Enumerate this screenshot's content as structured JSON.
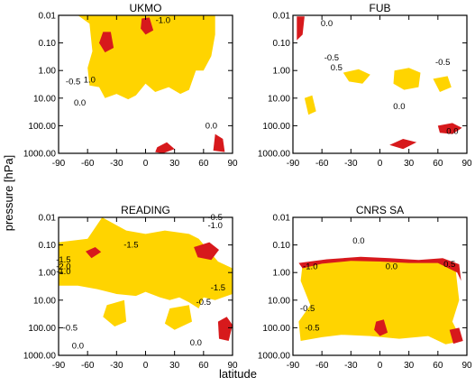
{
  "figure": {
    "xlabel": "latitude",
    "ylabel": "pressure [hPa]"
  },
  "colors": {
    "significant_high": "#ffd400",
    "significant_low": "#d7191c",
    "contour": "#000000"
  },
  "chart_data": [
    {
      "type": "contour",
      "title": "UKMO",
      "x_ticks": [
        "-90",
        "-60",
        "-30",
        "0",
        "30",
        "60",
        "90"
      ],
      "y_ticks": [
        "0.01",
        "0.10",
        "1.00",
        "10.00",
        "100.00",
        "1000.00"
      ],
      "xlim": [
        -90,
        90
      ],
      "ylim": [
        1000,
        0.01
      ],
      "y_scale": "log",
      "contour_labels": [
        {
          "text": "-1.0",
          "lat": 18,
          "p": 0.015
        },
        {
          "text": "-0.5",
          "lat": -75,
          "p": 2.5
        },
        {
          "text": "1.0",
          "lat": -58,
          "p": 2.2
        },
        {
          "text": "0.0",
          "lat": -68,
          "p": 15
        },
        {
          "text": "0.0",
          "lat": 68,
          "p": 100
        }
      ],
      "regions": [
        {
          "shade": "significant_high",
          "pts": [
            [
              -70,
              0.01
            ],
            [
              -58,
              0.02
            ],
            [
              -55,
              0.2
            ],
            [
              -60,
              0.8
            ],
            [
              -58,
              3.5
            ],
            [
              -48,
              4
            ],
            [
              -42,
              10
            ],
            [
              -30,
              7
            ],
            [
              -18,
              11
            ],
            [
              -10,
              8
            ],
            [
              0,
              3
            ],
            [
              10,
              6
            ],
            [
              24,
              4
            ],
            [
              36,
              7
            ],
            [
              45,
              5
            ],
            [
              52,
              1
            ],
            [
              60,
              1
            ],
            [
              68,
              0.3
            ],
            [
              72,
              0.05
            ],
            [
              72,
              0.01
            ]
          ]
        },
        {
          "shade": "significant_low",
          "pts": [
            [
              -44,
              0.04
            ],
            [
              -36,
              0.04
            ],
            [
              -33,
              0.15
            ],
            [
              -42,
              0.22
            ],
            [
              -48,
              0.1
            ]
          ]
        },
        {
          "shade": "significant_low",
          "pts": [
            [
              -4,
              0.013
            ],
            [
              4,
              0.012
            ],
            [
              8,
              0.035
            ],
            [
              0,
              0.05
            ],
            [
              -5,
              0.03
            ]
          ]
        },
        {
          "shade": "significant_low",
          "pts": [
            [
              12,
              600
            ],
            [
              22,
              400
            ],
            [
              30,
              700
            ],
            [
              18,
              1000
            ],
            [
              10,
              900
            ]
          ]
        },
        {
          "shade": "significant_low",
          "pts": [
            [
              72,
              200
            ],
            [
              80,
              300
            ],
            [
              82,
              900
            ],
            [
              70,
              800
            ]
          ]
        }
      ]
    },
    {
      "type": "contour",
      "title": "FUB",
      "x_ticks": [
        "-90",
        "-60",
        "-30",
        "0",
        "30",
        "60",
        "90"
      ],
      "y_ticks": [
        "0.01",
        "0.10",
        "1.00",
        "10.00",
        "100.00",
        "1000.00"
      ],
      "xlim": [
        -90,
        90
      ],
      "ylim": [
        1000,
        0.01
      ],
      "y_scale": "log",
      "contour_labels": [
        {
          "text": "0.0",
          "lat": -55,
          "p": 0.02
        },
        {
          "text": "-0.5",
          "lat": -50,
          "p": 0.35
        },
        {
          "text": "0.5",
          "lat": -45,
          "p": 0.8
        },
        {
          "text": "-0.5",
          "lat": 65,
          "p": 0.5
        },
        {
          "text": "0.0",
          "lat": 20,
          "p": 20
        },
        {
          "text": "0.0",
          "lat": 75,
          "p": 160
        }
      ],
      "regions": [
        {
          "shade": "significant_high",
          "pts": [
            [
              -38,
              1.2
            ],
            [
              -22,
              0.9
            ],
            [
              -10,
              1.4
            ],
            [
              -18,
              3
            ],
            [
              -32,
              2.5
            ]
          ]
        },
        {
          "shade": "significant_high",
          "pts": [
            [
              15,
              1
            ],
            [
              30,
              0.8
            ],
            [
              42,
              1.2
            ],
            [
              40,
              4
            ],
            [
              25,
              5
            ],
            [
              14,
              3
            ]
          ]
        },
        {
          "shade": "significant_high",
          "pts": [
            [
              55,
              2
            ],
            [
              70,
              1.6
            ],
            [
              74,
              4
            ],
            [
              62,
              6
            ]
          ]
        },
        {
          "shade": "significant_high",
          "pts": [
            [
              -78,
              10
            ],
            [
              -70,
              8
            ],
            [
              -66,
              30
            ],
            [
              -74,
              40
            ]
          ]
        },
        {
          "shade": "significant_low",
          "pts": [
            [
              -86,
              0.011
            ],
            [
              -78,
              0.011
            ],
            [
              -80,
              0.05
            ],
            [
              -86,
              0.08
            ]
          ]
        },
        {
          "shade": "significant_low",
          "pts": [
            [
              10,
              500
            ],
            [
              24,
              300
            ],
            [
              38,
              400
            ],
            [
              24,
              700
            ]
          ]
        },
        {
          "shade": "significant_low",
          "pts": [
            [
              60,
              100
            ],
            [
              75,
              80
            ],
            [
              85,
              120
            ],
            [
              75,
              200
            ],
            [
              62,
              180
            ]
          ]
        }
      ]
    },
    {
      "type": "contour",
      "title": "READING",
      "x_ticks": [
        "-90",
        "-60",
        "-30",
        "0",
        "30",
        "60",
        "90"
      ],
      "y_ticks": [
        "0.01",
        "0.10",
        "1.00",
        "10.00",
        "100.00",
        "1000.00"
      ],
      "xlim": [
        -90,
        90
      ],
      "ylim": [
        1000,
        0.01
      ],
      "y_scale": "log",
      "contour_labels": [
        {
          "text": "-1.5",
          "lat": -15,
          "p": 0.1
        },
        {
          "text": "-0.5",
          "lat": 72,
          "p": 0.01
        },
        {
          "text": "-1.0",
          "lat": 72,
          "p": 0.02
        },
        {
          "text": "-1.5",
          "lat": -85,
          "p": 0.35
        },
        {
          "text": "-2.0",
          "lat": -85,
          "p": 0.6
        },
        {
          "text": "-1.0",
          "lat": -85,
          "p": 0.9
        },
        {
          "text": "-1.5",
          "lat": 75,
          "p": 3.5
        },
        {
          "text": "-0.5",
          "lat": 60,
          "p": 12
        },
        {
          "text": "-0.5",
          "lat": -78,
          "p": 100
        },
        {
          "text": "0.0",
          "lat": -70,
          "p": 450
        },
        {
          "text": "0.0",
          "lat": 52,
          "p": 350
        }
      ],
      "regions": [
        {
          "shade": "significant_high",
          "pts": [
            [
              -90,
              0.08
            ],
            [
              -60,
              0.06
            ],
            [
              -45,
              0.01
            ],
            [
              -20,
              0.03
            ],
            [
              0,
              0.04
            ],
            [
              20,
              0.03
            ],
            [
              45,
              0.04
            ],
            [
              55,
              0.06
            ],
            [
              75,
              0.4
            ],
            [
              90,
              0.7
            ],
            [
              90,
              6
            ],
            [
              72,
              10
            ],
            [
              60,
              8
            ],
            [
              55,
              20
            ],
            [
              45,
              12
            ],
            [
              35,
              8
            ],
            [
              25,
              10
            ],
            [
              15,
              8
            ],
            [
              0,
              5
            ],
            [
              -10,
              7
            ],
            [
              -30,
              6
            ],
            [
              -50,
              4
            ],
            [
              -70,
              3
            ],
            [
              -90,
              3
            ]
          ]
        },
        {
          "shade": "significant_high",
          "pts": [
            [
              -40,
              15
            ],
            [
              -22,
              10
            ],
            [
              -20,
              60
            ],
            [
              -32,
              90
            ],
            [
              -44,
              40
            ]
          ]
        },
        {
          "shade": "significant_high",
          "pts": [
            [
              25,
              20
            ],
            [
              45,
              15
            ],
            [
              48,
              60
            ],
            [
              30,
              120
            ],
            [
              20,
              70
            ]
          ]
        },
        {
          "shade": "significant_low",
          "pts": [
            [
              -62,
              0.17
            ],
            [
              -52,
              0.12
            ],
            [
              -46,
              0.18
            ],
            [
              -56,
              0.3
            ]
          ]
        },
        {
          "shade": "significant_low",
          "pts": [
            [
              50,
              0.12
            ],
            [
              66,
              0.08
            ],
            [
              76,
              0.15
            ],
            [
              68,
              0.35
            ],
            [
              54,
              0.28
            ]
          ]
        },
        {
          "shade": "significant_low",
          "pts": [
            [
              75,
              60
            ],
            [
              84,
              40
            ],
            [
              90,
              80
            ],
            [
              86,
              300
            ],
            [
              76,
              250
            ]
          ]
        }
      ]
    },
    {
      "type": "contour",
      "title": "CNRS SA",
      "x_ticks": [
        "-90",
        "-60",
        "-30",
        "0",
        "30",
        "60",
        "90"
      ],
      "y_ticks": [
        "0.01",
        "0.10",
        "1.00",
        "10.00",
        "100.00",
        "1000.00"
      ],
      "xlim": [
        -90,
        90
      ],
      "ylim": [
        1000,
        0.01
      ],
      "y_scale": "log",
      "contour_labels": [
        {
          "text": "0.0",
          "lat": -22,
          "p": 0.07
        },
        {
          "text": "0.0",
          "lat": 12,
          "p": 0.6
        },
        {
          "text": "-1.0",
          "lat": -72,
          "p": 0.6
        },
        {
          "text": "0.5",
          "lat": 72,
          "p": 0.5
        },
        {
          "text": "-0.5",
          "lat": -75,
          "p": 20
        },
        {
          "text": "-0.5",
          "lat": -70,
          "p": 100
        }
      ],
      "regions": [
        {
          "shade": "significant_high",
          "pts": [
            [
              -80,
              0.5
            ],
            [
              -50,
              0.4
            ],
            [
              -20,
              0.3
            ],
            [
              10,
              0.35
            ],
            [
              40,
              0.4
            ],
            [
              60,
              0.35
            ],
            [
              78,
              0.6
            ],
            [
              82,
              10
            ],
            [
              75,
              60
            ],
            [
              85,
              300
            ],
            [
              68,
              400
            ],
            [
              50,
              200
            ],
            [
              20,
              250
            ],
            [
              -10,
              200
            ],
            [
              -40,
              180
            ],
            [
              -60,
              220
            ],
            [
              -82,
              300
            ],
            [
              -84,
              60
            ],
            [
              -72,
              15
            ],
            [
              -82,
              2
            ]
          ]
        },
        {
          "shade": "significant_low",
          "pts": [
            [
              -84,
              0.45
            ],
            [
              -55,
              0.33
            ],
            [
              -20,
              0.27
            ],
            [
              10,
              0.3
            ],
            [
              40,
              0.35
            ],
            [
              65,
              0.3
            ],
            [
              82,
              0.5
            ],
            [
              84,
              2
            ],
            [
              80,
              1
            ],
            [
              60,
              0.45
            ],
            [
              30,
              0.45
            ],
            [
              0,
              0.4
            ],
            [
              -30,
              0.38
            ],
            [
              -60,
              0.48
            ],
            [
              -80,
              0.7
            ]
          ]
        },
        {
          "shade": "significant_low",
          "pts": [
            [
              -4,
              60
            ],
            [
              4,
              50
            ],
            [
              8,
              150
            ],
            [
              0,
              200
            ],
            [
              -6,
              120
            ]
          ]
        },
        {
          "shade": "significant_low",
          "pts": [
            [
              72,
              120
            ],
            [
              82,
              100
            ],
            [
              86,
              300
            ],
            [
              76,
              380
            ]
          ]
        }
      ]
    }
  ]
}
